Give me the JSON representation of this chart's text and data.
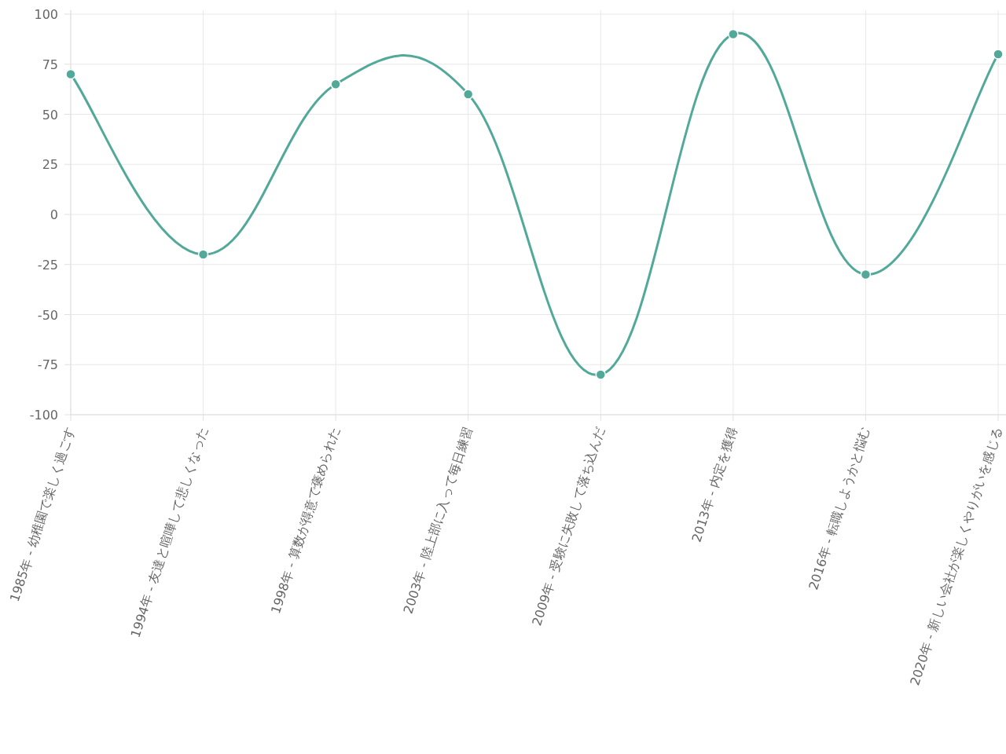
{
  "chart_data": {
    "type": "line",
    "categories": [
      "1985年 - 幼稚園で楽しく過ごす",
      "1994年 - 友達と喧嘩して悲しくなった",
      "1998年 - 算数が得意で褒められた",
      "2003年 - 陸上部に入って毎日練習",
      "2009年 - 受験に失敗して落ち込んだ",
      "2013年 - 内定を獲得",
      "2016年 - 転職しようかと悩む",
      "2020年 - 新しい会社が楽しくやりがいを感じる"
    ],
    "values": [
      70,
      -20,
      65,
      60,
      -80,
      90,
      -30,
      80
    ],
    "color": "#52a99a",
    "ylim": [
      -100,
      100
    ],
    "yticks": [
      -100,
      -75,
      -50,
      -25,
      0,
      25,
      50,
      75,
      100
    ],
    "grid": true,
    "marker": "circle"
  }
}
